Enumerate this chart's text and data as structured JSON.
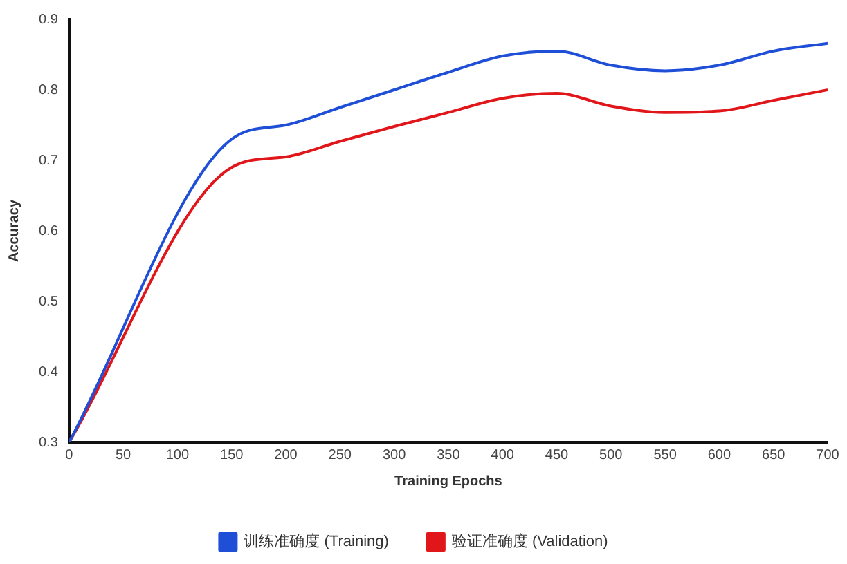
{
  "chart_data": {
    "type": "line",
    "xlabel": "Training Epochs",
    "ylabel": "Accuracy",
    "x": [
      0,
      150,
      200,
      250,
      300,
      350,
      400,
      450,
      500,
      550,
      600,
      650,
      700
    ],
    "series": [
      {
        "name": "训练准确度 (Training)",
        "color": "#1f4fd6",
        "values": [
          0.3,
          0.73,
          0.75,
          0.775,
          0.8,
          0.825,
          0.848,
          0.855,
          0.835,
          0.827,
          0.835,
          0.855,
          0.866
        ]
      },
      {
        "name": "验证准确度 (Validation)",
        "color": "#e0161b",
        "values": [
          0.3,
          0.69,
          0.705,
          0.727,
          0.748,
          0.768,
          0.788,
          0.795,
          0.777,
          0.768,
          0.77,
          0.785,
          0.8
        ]
      }
    ],
    "xlim": [
      0,
      700
    ],
    "xticks": [
      0,
      50,
      100,
      150,
      200,
      250,
      300,
      350,
      400,
      450,
      500,
      550,
      600,
      650,
      700
    ],
    "ylim": [
      0.3,
      0.9
    ],
    "yticks": [
      0.3,
      0.4,
      0.5,
      0.6,
      0.7,
      0.8,
      0.9
    ],
    "grid": false,
    "legend": "bottom",
    "marker": "none",
    "line_style": "solid"
  }
}
